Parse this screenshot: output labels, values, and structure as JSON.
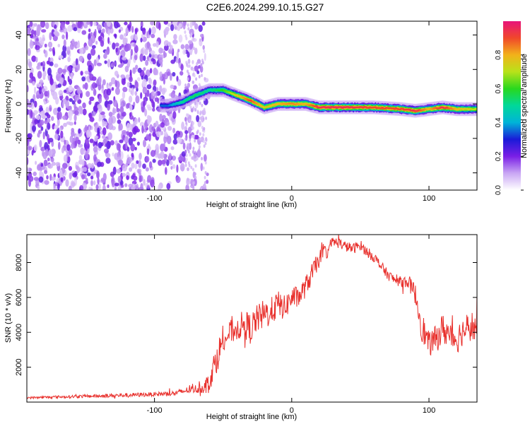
{
  "title": "C2E6.2024.299.10.15.G27",
  "chart_data": [
    {
      "type": "heatmap",
      "xlabel": "Height of straight line (km)",
      "ylabel": "Frequency (Hz)",
      "xlim": [
        -193,
        135
      ],
      "ylim": [
        -50,
        48
      ],
      "xticks": [
        -100,
        0,
        100
      ],
      "yticks": [
        -40,
        -20,
        0,
        20,
        40
      ],
      "xtick_labels": [
        "-100",
        "0",
        "100"
      ],
      "ytick_labels": [
        "-40",
        "-20",
        "0",
        "20",
        "40"
      ],
      "colorbar": {
        "label": "Normalized spectral amplitude",
        "ticks": [
          0.0,
          0.2,
          0.4,
          0.6,
          0.8
        ],
        "tick_labels": [
          "0.0",
          "0.2",
          "0.4",
          "0.6",
          "0.8"
        ],
        "range": [
          0,
          1
        ]
      },
      "ridge": {
        "x": [
          -90,
          -80,
          -70,
          -60,
          -50,
          -40,
          -30,
          -20,
          -10,
          0,
          10,
          20,
          40,
          60,
          80,
          90,
          100,
          110,
          120,
          135
        ],
        "freq": [
          -1,
          1,
          5,
          8,
          8,
          5,
          2,
          -2,
          0,
          0,
          0,
          -2,
          -2,
          -2,
          -3,
          -4,
          -3,
          -2,
          -3,
          -3
        ],
        "amplitude": [
          0.35,
          0.5,
          0.55,
          0.5,
          0.6,
          0.75,
          0.9,
          0.75,
          0.8,
          0.85,
          0.8,
          0.95,
          0.95,
          0.9,
          0.9,
          0.95,
          0.8,
          0.95,
          0.8,
          0.7
        ]
      },
      "noise_region_x": [
        -193,
        -60
      ]
    },
    {
      "type": "line",
      "xlabel": "Height of straight line (km)",
      "ylabel": "SNR (10 * v/v)",
      "xlim": [
        -193,
        135
      ],
      "ylim": [
        0,
        9600
      ],
      "xticks": [
        -100,
        0,
        100
      ],
      "yticks": [
        2000,
        4000,
        6000,
        8000
      ],
      "xtick_labels": [
        "-100",
        "0",
        "100"
      ],
      "ytick_labels": [
        "2000",
        "4000",
        "6000",
        "8000"
      ],
      "line_color": "#e8302c",
      "series": [
        {
          "name": "SNR",
          "x": [
            -193,
            -170,
            -140,
            -120,
            -100,
            -85,
            -75,
            -65,
            -60,
            -55,
            -50,
            -45,
            -40,
            -35,
            -30,
            -25,
            -20,
            -15,
            -10,
            -5,
            0,
            5,
            10,
            15,
            20,
            25,
            30,
            35,
            40,
            45,
            50,
            55,
            60,
            65,
            70,
            75,
            80,
            85,
            90,
            95,
            100,
            105,
            110,
            115,
            120,
            125,
            130,
            135
          ],
          "y": [
            250,
            300,
            350,
            400,
            450,
            500,
            700,
            800,
            1200,
            2500,
            3500,
            4000,
            4200,
            4500,
            4200,
            4800,
            5000,
            5200,
            5600,
            5400,
            6000,
            6000,
            6600,
            7400,
            8200,
            8600,
            9200,
            9100,
            8900,
            8800,
            9000,
            8600,
            8300,
            7800,
            7300,
            7000,
            6900,
            6900,
            6200,
            4300,
            3300,
            3600,
            4200,
            3900,
            3600,
            4100,
            4400,
            4200
          ],
          "jitter": [
            60,
            80,
            100,
            120,
            120,
            150,
            200,
            300,
            600,
            900,
            800,
            700,
            700,
            800,
            900,
            800,
            900,
            800,
            800,
            700,
            700,
            600,
            600,
            600,
            500,
            500,
            300,
            300,
            300,
            300,
            300,
            300,
            300,
            300,
            300,
            300,
            300,
            400,
            600,
            900,
            700,
            800,
            900,
            900,
            900,
            800,
            900,
            900
          ]
        }
      ]
    }
  ]
}
